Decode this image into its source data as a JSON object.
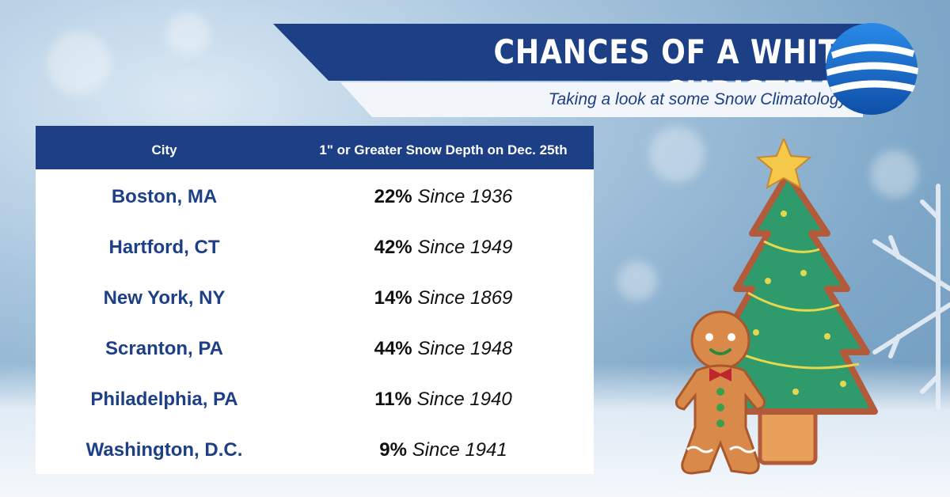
{
  "title": "CHANCES OF A WHITE CHRISTMAS",
  "subtitle": "Taking a look at some Snow Climatology",
  "colors": {
    "brand_blue": "#1c3f86",
    "logo_blue": "#1e6fd0",
    "banner_white": "#f2f6fb"
  },
  "table": {
    "headers": {
      "city": "City",
      "depth": "1\" or Greater Snow Depth on Dec. 25th"
    },
    "rows": [
      {
        "city": "Boston, MA",
        "percent": "22%",
        "since": "Since 1936"
      },
      {
        "city": "Hartford, CT",
        "percent": "42%",
        "since": "Since 1949"
      },
      {
        "city": "New York, NY",
        "percent": "14%",
        "since": "Since 1869"
      },
      {
        "city": "Scranton, PA",
        "percent": "44%",
        "since": "Since 1948"
      },
      {
        "city": "Philadelphia, PA",
        "percent": "11%",
        "since": "Since 1940"
      },
      {
        "city": "Washington, D.C.",
        "percent": "9%",
        "since": "Since 1941"
      }
    ]
  },
  "icons": [
    "globe-logo-icon",
    "christmas-tree-icon",
    "star-icon",
    "gingerbread-man-icon",
    "snowflake-icon"
  ]
}
